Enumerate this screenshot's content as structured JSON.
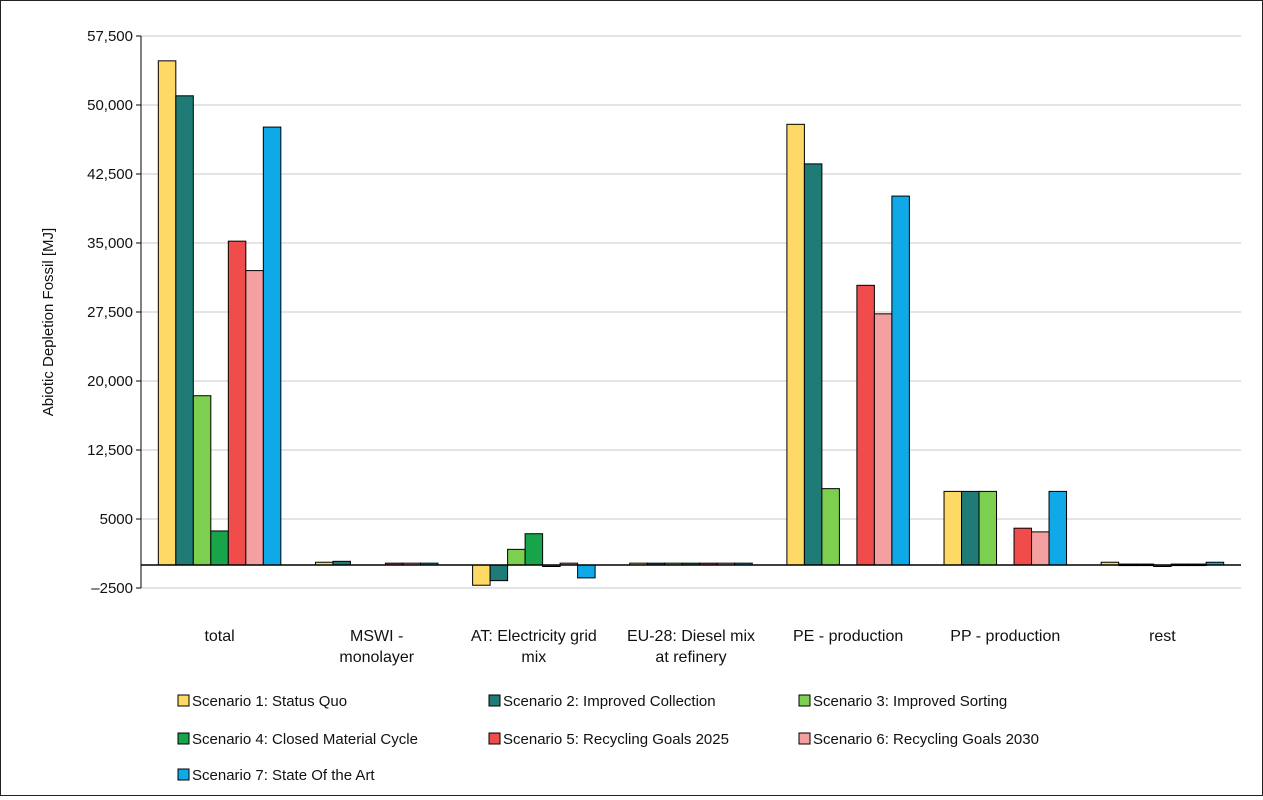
{
  "chart_data": {
    "type": "bar",
    "ylabel": "Abiotic Depletion Fossil [MJ]",
    "ylim": [
      -2500,
      57500
    ],
    "yticks": [
      {
        "value": 57500,
        "label": "57,500"
      },
      {
        "value": 50000,
        "label": "50,000"
      },
      {
        "value": 42500,
        "label": "42,500"
      },
      {
        "value": 35000,
        "label": "35,000"
      },
      {
        "value": 27500,
        "label": "27,500"
      },
      {
        "value": 20000,
        "label": "20,000"
      },
      {
        "value": 12500,
        "label": "12,500"
      },
      {
        "value": 5000,
        "label": "5000"
      },
      {
        "value": -2500,
        "label": "–2500"
      }
    ],
    "grid": true,
    "legend_position": "bottom",
    "categories": [
      [
        "total"
      ],
      [
        "MSWI -",
        "monolayer"
      ],
      [
        "AT: Electricity grid",
        "mix"
      ],
      [
        "EU-28: Diesel mix",
        "at refinery"
      ],
      [
        "PE - production"
      ],
      [
        "PP - production"
      ],
      [
        "rest"
      ]
    ],
    "series": [
      {
        "name": "Scenario 1: Status Quo",
        "color": "#FFD966",
        "values": [
          54800,
          300,
          -2200,
          200,
          47900,
          8000,
          300
        ]
      },
      {
        "name": "Scenario 2: Improved Collection",
        "color": "#1E7B75",
        "values": [
          51000,
          400,
          -1700,
          200,
          43600,
          8000,
          100
        ]
      },
      {
        "name": "Scenario 3: Improved Sorting",
        "color": "#7CCF4F",
        "values": [
          18400,
          0,
          1700,
          200,
          8300,
          8000,
          100
        ]
      },
      {
        "name": "Scenario 4: Closed Material Cycle",
        "color": "#17A44A",
        "values": [
          3700,
          0,
          3400,
          200,
          0,
          0,
          -100
        ]
      },
      {
        "name": "Scenario 5: Recycling Goals 2025",
        "color": "#F14C4C",
        "values": [
          35200,
          200,
          -100,
          200,
          30400,
          4000,
          100
        ]
      },
      {
        "name": "Scenario 6: Recycling Goals 2030",
        "color": "#F4A0A0",
        "values": [
          32000,
          200,
          200,
          200,
          27300,
          3600,
          100
        ]
      },
      {
        "name": "Scenario 7: State Of  the Art",
        "color": "#0FA9E8",
        "values": [
          47600,
          200,
          -1400,
          200,
          40100,
          8000,
          300
        ]
      }
    ]
  }
}
